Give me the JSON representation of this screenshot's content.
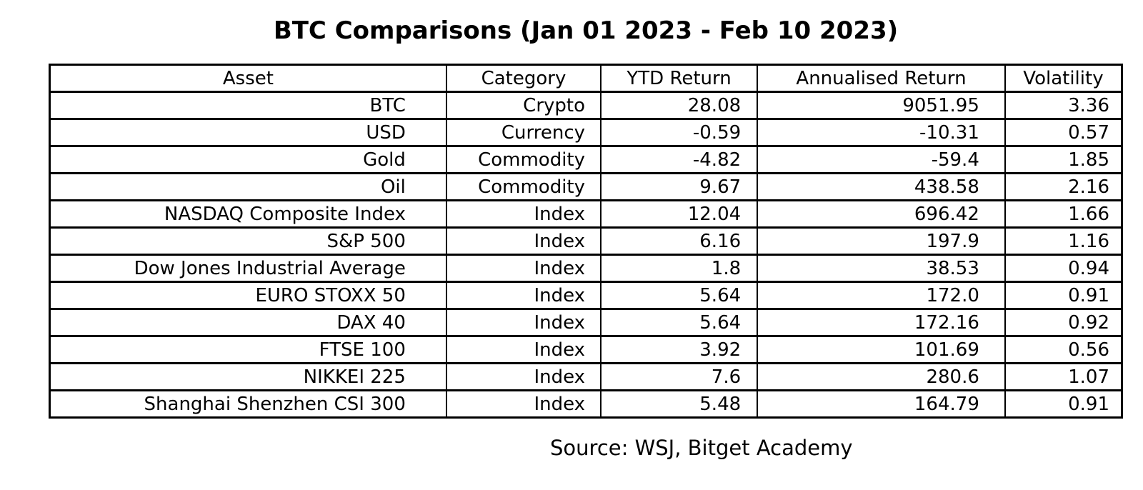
{
  "title": "BTC Comparisons (Jan 01 2023 - Feb 10 2023)",
  "source_note": "Source: WSJ, Bitget Academy",
  "colors": {
    "background": "#ffffff",
    "text": "#000000",
    "border": "#000000"
  },
  "chart_data": {
    "type": "table",
    "title": "BTC Comparisons (Jan 01 2023 - Feb 10 2023)",
    "columns": [
      "Asset",
      "Category",
      "YTD Return",
      "Annualised Return",
      "Volatility"
    ],
    "rows": [
      [
        "BTC",
        "Crypto",
        "28.08",
        "9051.95",
        "3.36"
      ],
      [
        "USD",
        "Currency",
        "-0.59",
        "-10.31",
        "0.57"
      ],
      [
        "Gold",
        "Commodity",
        "-4.82",
        "-59.4",
        "1.85"
      ],
      [
        "Oil",
        "Commodity",
        "9.67",
        "438.58",
        "2.16"
      ],
      [
        "NASDAQ Composite Index",
        "Index",
        "12.04",
        "696.42",
        "1.66"
      ],
      [
        "S&P 500",
        "Index",
        "6.16",
        "197.9",
        "1.16"
      ],
      [
        "Dow Jones Industrial Average",
        "Index",
        "1.8",
        "38.53",
        "0.94"
      ],
      [
        "EURO STOXX 50",
        "Index",
        "5.64",
        "172.0",
        "0.91"
      ],
      [
        "DAX 40",
        "Index",
        "5.64",
        "172.16",
        "0.92"
      ],
      [
        "FTSE 100",
        "Index",
        "3.92",
        "101.69",
        "0.56"
      ],
      [
        "NIKKEI 225",
        "Index",
        "7.6",
        "280.6",
        "1.07"
      ],
      [
        "Shanghai Shenzhen CSI 300",
        "Index",
        "5.48",
        "164.79",
        "0.91"
      ]
    ],
    "source_note": "Source: WSJ, Bitget Academy",
    "layout": {
      "header_align": "center",
      "cell_align": "right",
      "grid": "all-borders"
    }
  }
}
